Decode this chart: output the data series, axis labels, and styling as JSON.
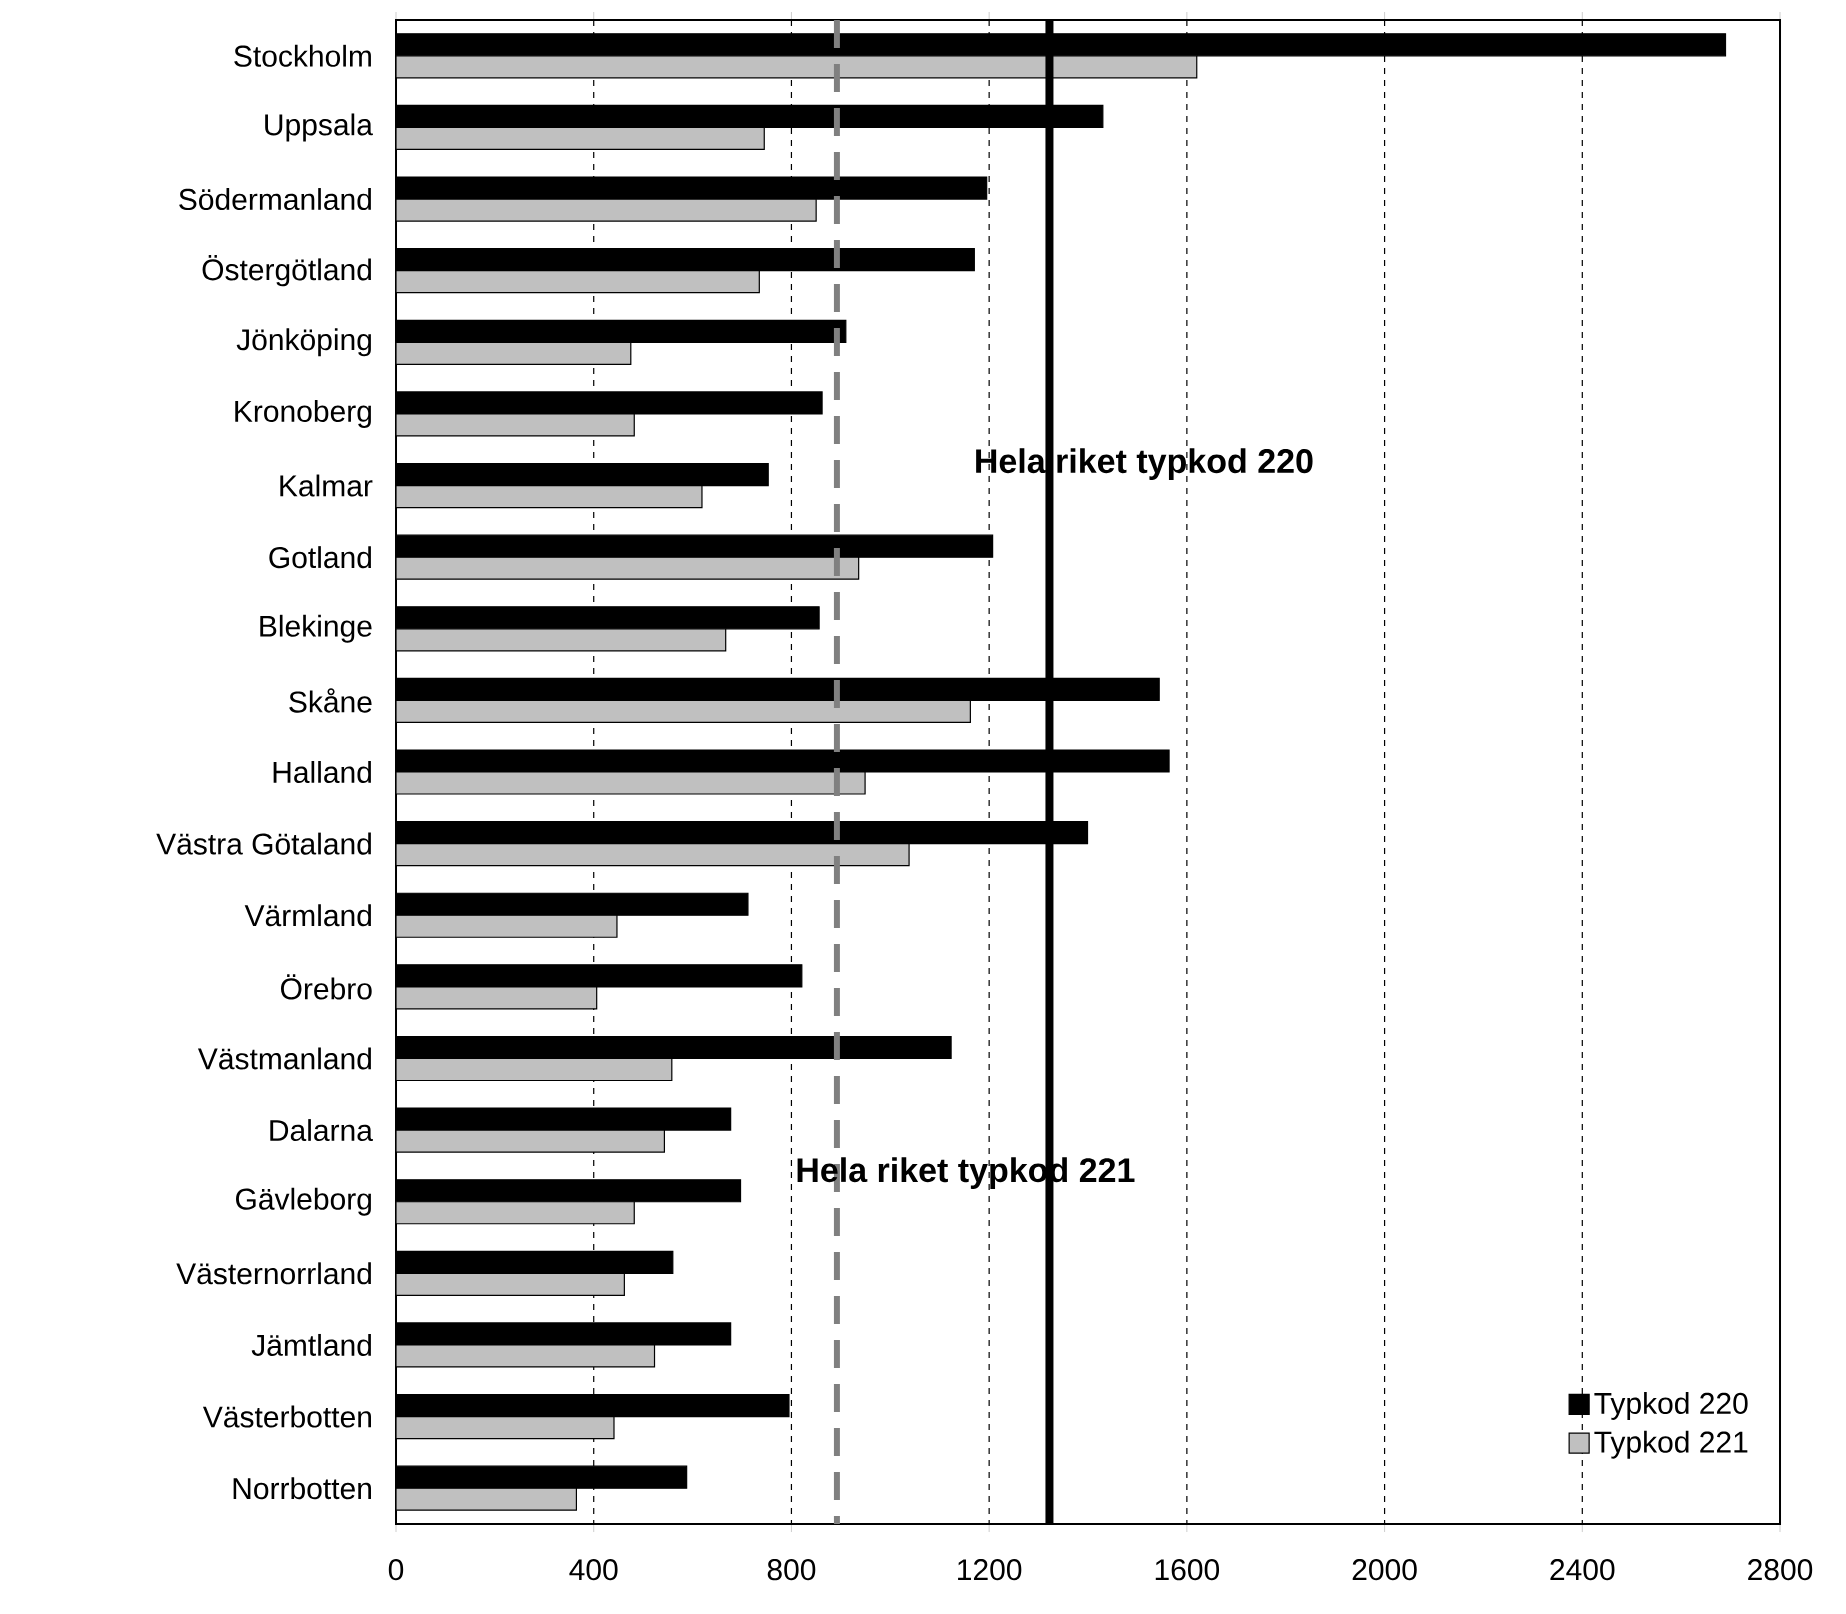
{
  "chart_data": {
    "type": "bar",
    "orientation": "horizontal",
    "categories": [
      "Stockholm",
      "Uppsala",
      "Södermanland",
      "Östergötland",
      "Jönköping",
      "Kronoberg",
      "Kalmar",
      "Gotland",
      "Blekinge",
      "Skåne",
      "Halland",
      "Västra Götaland",
      "Värmland",
      "Örebro",
      "Västmanland",
      "Dalarna",
      "Gävleborg",
      "Västernorrland",
      "Jämtland",
      "Västerbotten",
      "Norrbotten"
    ],
    "series": [
      {
        "name": "Typkod 220",
        "color": "#000000",
        "values": [
          2690,
          1430,
          1195,
          1170,
          910,
          862,
          753,
          1207,
          856,
          1544,
          1564,
          1399,
          712,
          821,
          1123,
          677,
          697,
          560,
          677,
          795,
          588
        ]
      },
      {
        "name": "Typkod 221",
        "color": "#c0c0c0",
        "values": [
          1620,
          745,
          850,
          735,
          475,
          482,
          619,
          936,
          667,
          1162,
          949,
          1038,
          447,
          406,
          558,
          543,
          482,
          462,
          523,
          441,
          365
        ]
      }
    ],
    "xlim": [
      0,
      2800
    ],
    "xticks": [
      0,
      400,
      800,
      1200,
      1600,
      2000,
      2400,
      2800
    ],
    "grid": "x",
    "legend": "bottom right",
    "ref_lines": [
      {
        "axis": "x",
        "value": 1322,
        "label": "Hela riket typkod 220",
        "color": "#000000",
        "line_style": "solid"
      },
      {
        "axis": "x",
        "value": 892,
        "label": "Hela  riket  typkod 221",
        "color": "#808080",
        "line_style": "dashed"
      }
    ]
  }
}
